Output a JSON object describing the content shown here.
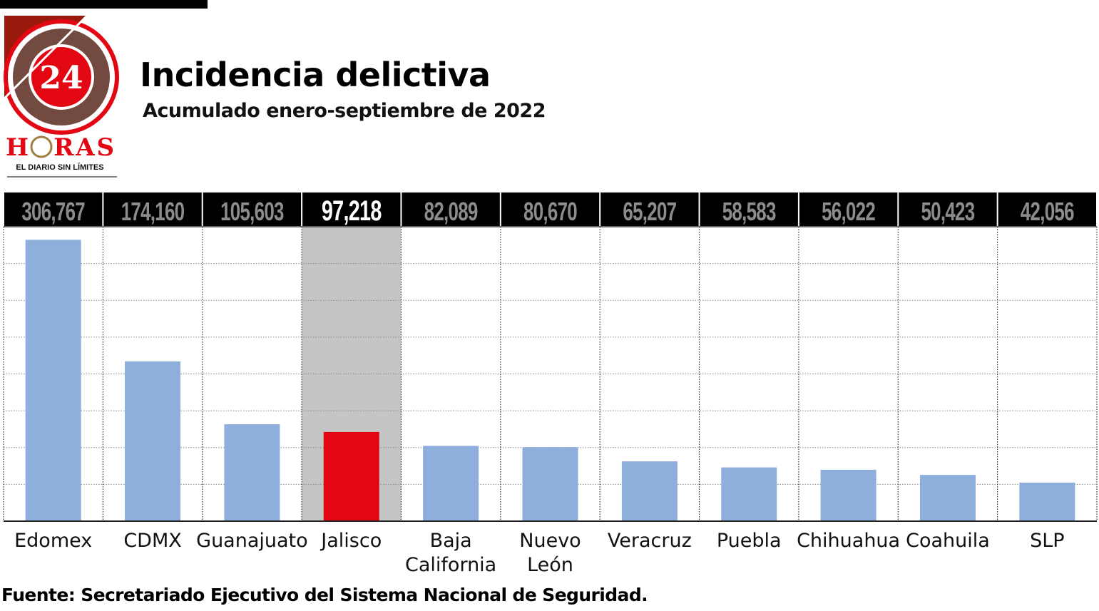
{
  "logo": {
    "number": "24",
    "name": "HORAS",
    "tagline": "EL DIARIO SIN LÍMITES"
  },
  "chart_data": {
    "type": "bar",
    "title": "Incidencia delictiva",
    "subtitle": "Acumulado enero-septiembre de 2022",
    "categories": [
      "Edomex",
      "CDMX",
      "Guanajuato",
      "Jalisco",
      "Baja California",
      "Nuevo León",
      "Veracruz",
      "Puebla",
      "Chihuahua",
      "Coahuila",
      "SLP"
    ],
    "category_lines": [
      [
        "Edomex"
      ],
      [
        "CDMX"
      ],
      [
        "Guanajuato"
      ],
      [
        "Jalisco"
      ],
      [
        "Baja",
        "California"
      ],
      [
        "Nuevo",
        "León"
      ],
      [
        "Veracruz"
      ],
      [
        "Puebla"
      ],
      [
        "Chihuahua"
      ],
      [
        "Coahuila"
      ],
      [
        "SLP"
      ]
    ],
    "values": [
      306767,
      174160,
      105603,
      97218,
      82089,
      80670,
      65207,
      58583,
      56022,
      50423,
      42056
    ],
    "value_labels": [
      "306,767",
      "174,160",
      "105,603",
      "97,218",
      "82,089",
      "80,670",
      "65,207",
      "58,583",
      "56,022",
      "50,423",
      "42,056"
    ],
    "highlight_index": 3,
    "ylim": [
      0,
      321000
    ],
    "grid": true,
    "xlabel": "",
    "ylabel": "",
    "colors": {
      "bar": "#8eaedc",
      "highlight_bar": "#e30613",
      "highlight_bg": "#c5c5c5",
      "header_bg": "#000000",
      "header_text": "#8c8c8c",
      "header_highlight_text": "#ffffff"
    }
  },
  "source": "Fuente: Secretariado Ejecutivo del Sistema Nacional de Seguridad."
}
